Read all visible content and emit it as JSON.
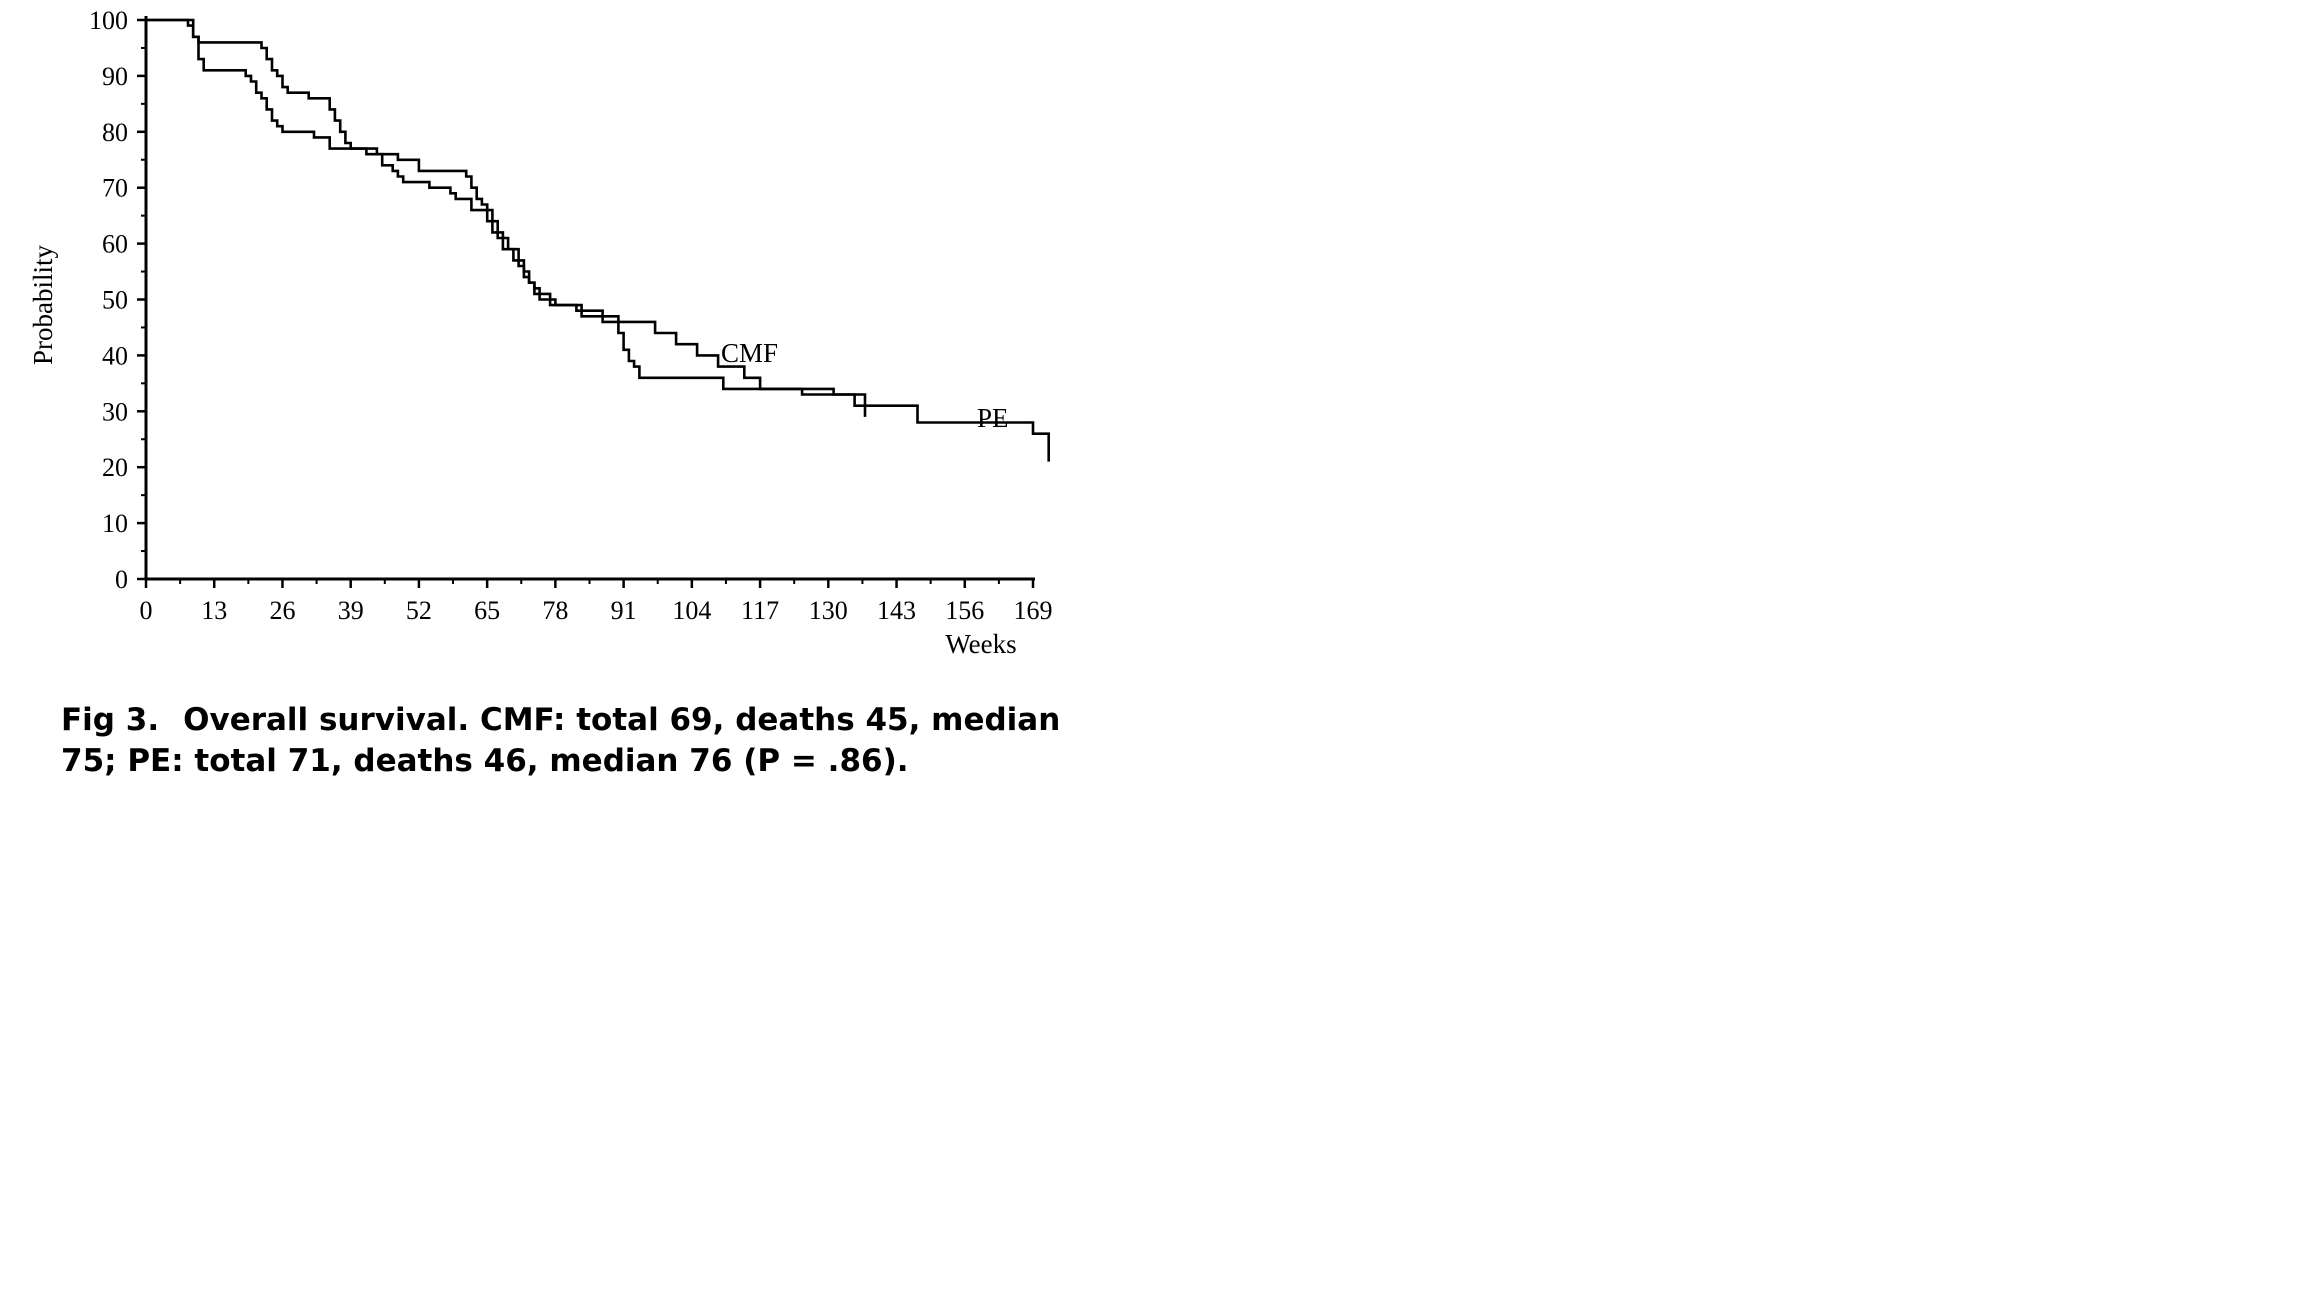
{
  "caption": {
    "figure_label": "Fig 3.",
    "text": "Overall survival. CMF: total 69, deaths 45, median 75; PE: total 71, deaths 46, median 76 (P = .86)."
  },
  "chart_data": {
    "type": "line",
    "step": true,
    "title": "",
    "xlabel": "Weeks",
    "ylabel": "Probability",
    "xlim": [
      0,
      169
    ],
    "ylim": [
      0,
      100
    ],
    "x_ticks": [
      0,
      13,
      26,
      39,
      52,
      65,
      78,
      91,
      104,
      117,
      130,
      143,
      156,
      169
    ],
    "y_ticks": [
      0,
      10,
      20,
      30,
      40,
      50,
      60,
      70,
      80,
      90,
      100
    ],
    "grid": false,
    "line_color": "#000000",
    "series": [
      {
        "name": "CMF",
        "points": [
          [
            0,
            100
          ],
          [
            7,
            100
          ],
          [
            8,
            99
          ],
          [
            9,
            97
          ],
          [
            10,
            96
          ],
          [
            21,
            96
          ],
          [
            22,
            95
          ],
          [
            23,
            93
          ],
          [
            24,
            91
          ],
          [
            25,
            90
          ],
          [
            26,
            88
          ],
          [
            27,
            87
          ],
          [
            30,
            87
          ],
          [
            31,
            86
          ],
          [
            34,
            86
          ],
          [
            35,
            84
          ],
          [
            36,
            82
          ],
          [
            37,
            80
          ],
          [
            38,
            78
          ],
          [
            39,
            77
          ],
          [
            43,
            77
          ],
          [
            44,
            76
          ],
          [
            47,
            76
          ],
          [
            48,
            75
          ],
          [
            51,
            75
          ],
          [
            52,
            73
          ],
          [
            60,
            73
          ],
          [
            61,
            72
          ],
          [
            62,
            70
          ],
          [
            63,
            68
          ],
          [
            64,
            67
          ],
          [
            65,
            66
          ],
          [
            66,
            64
          ],
          [
            67,
            62
          ],
          [
            68,
            61
          ],
          [
            69,
            59
          ],
          [
            70,
            57
          ],
          [
            71,
            56
          ],
          [
            72,
            54
          ],
          [
            73,
            53
          ],
          [
            74,
            51
          ],
          [
            76,
            51
          ],
          [
            77,
            50
          ],
          [
            78,
            49
          ],
          [
            81,
            49
          ],
          [
            82,
            48
          ],
          [
            86,
            48
          ],
          [
            87,
            47
          ],
          [
            89,
            47
          ],
          [
            90,
            46
          ],
          [
            96,
            46
          ],
          [
            97,
            44
          ],
          [
            100,
            44
          ],
          [
            101,
            42
          ],
          [
            104,
            42
          ],
          [
            105,
            40
          ],
          [
            108,
            40
          ],
          [
            109,
            38
          ],
          [
            113,
            38
          ],
          [
            114,
            36
          ],
          [
            116,
            36
          ],
          [
            117,
            34
          ],
          [
            130,
            34
          ],
          [
            131,
            33
          ],
          [
            134,
            33
          ],
          [
            135,
            31
          ],
          [
            137,
            31
          ],
          [
            137,
            29
          ]
        ]
      },
      {
        "name": "PE",
        "points": [
          [
            0,
            100
          ],
          [
            8,
            100
          ],
          [
            9,
            97
          ],
          [
            10,
            93
          ],
          [
            11,
            91
          ],
          [
            18,
            91
          ],
          [
            19,
            90
          ],
          [
            20,
            89
          ],
          [
            21,
            87
          ],
          [
            22,
            86
          ],
          [
            23,
            84
          ],
          [
            24,
            82
          ],
          [
            25,
            81
          ],
          [
            26,
            80
          ],
          [
            31,
            80
          ],
          [
            32,
            79
          ],
          [
            34,
            79
          ],
          [
            35,
            77
          ],
          [
            41,
            77
          ],
          [
            42,
            76
          ],
          [
            44,
            76
          ],
          [
            45,
            74
          ],
          [
            47,
            73
          ],
          [
            48,
            72
          ],
          [
            49,
            71
          ],
          [
            53,
            71
          ],
          [
            54,
            70
          ],
          [
            57,
            70
          ],
          [
            58,
            69
          ],
          [
            59,
            68
          ],
          [
            61,
            68
          ],
          [
            62,
            66
          ],
          [
            64,
            66
          ],
          [
            65,
            64
          ],
          [
            66,
            62
          ],
          [
            67,
            61
          ],
          [
            68,
            59
          ],
          [
            70,
            59
          ],
          [
            71,
            57
          ],
          [
            72,
            55
          ],
          [
            73,
            53
          ],
          [
            74,
            52
          ],
          [
            75,
            50
          ],
          [
            76,
            50
          ],
          [
            77,
            49
          ],
          [
            82,
            49
          ],
          [
            83,
            47
          ],
          [
            86,
            47
          ],
          [
            87,
            46
          ],
          [
            89,
            46
          ],
          [
            90,
            44
          ],
          [
            91,
            41
          ],
          [
            92,
            39
          ],
          [
            93,
            38
          ],
          [
            94,
            36
          ],
          [
            109,
            36
          ],
          [
            110,
            34
          ],
          [
            124,
            34
          ],
          [
            125,
            33
          ],
          [
            136,
            33
          ],
          [
            137,
            31
          ],
          [
            146,
            31
          ],
          [
            147,
            28
          ],
          [
            168,
            28
          ],
          [
            169,
            26
          ],
          [
            172,
            26
          ],
          [
            172,
            21
          ]
        ]
      }
    ]
  }
}
